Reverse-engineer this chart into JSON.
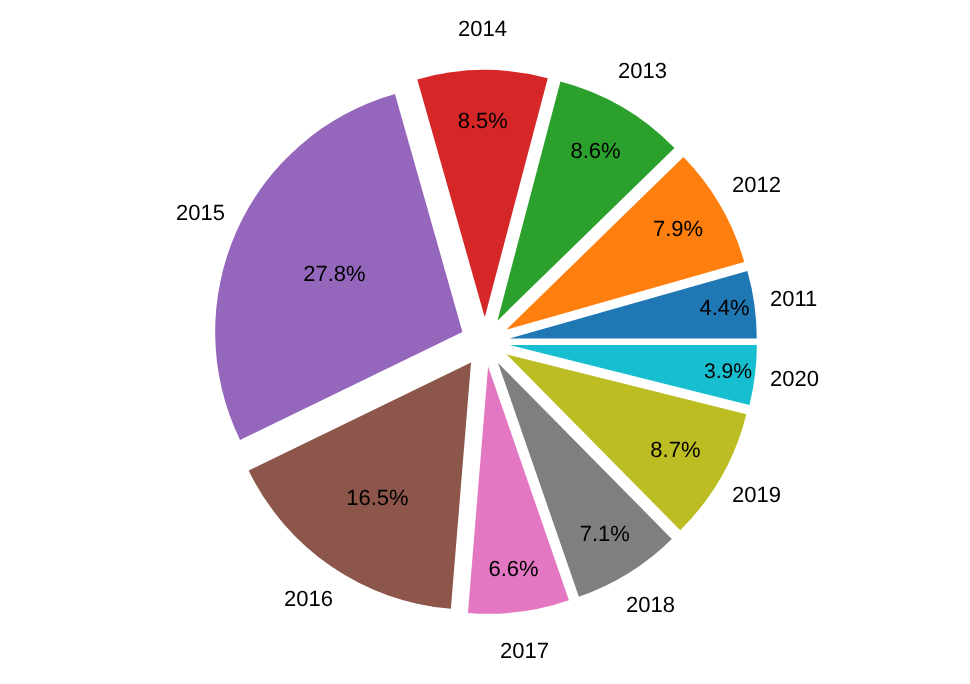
{
  "chart_data": {
    "type": "pie",
    "categories": [
      "2011",
      "2012",
      "2013",
      "2014",
      "2015",
      "2016",
      "2017",
      "2018",
      "2019",
      "2020"
    ],
    "values": [
      4.4,
      7.9,
      8.6,
      8.5,
      27.8,
      16.5,
      6.6,
      7.1,
      8.7,
      3.9
    ],
    "value_labels": [
      "4.4%",
      "7.9%",
      "8.6%",
      "8.5%",
      "27.8%",
      "16.5%",
      "6.6%",
      "7.1%",
      "8.7%",
      "3.9%"
    ],
    "colors": [
      "#1f77b4",
      "#ff7f0e",
      "#2ca02c",
      "#d62728",
      "#9467bd",
      "#8c564b",
      "#e377c2",
      "#7f7f7f",
      "#bcbd22",
      "#17becf"
    ],
    "legend": false
  }
}
